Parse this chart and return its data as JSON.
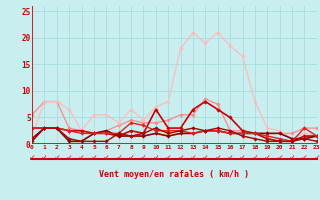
{
  "xlabel": "Vent moyen/en rafales ( km/h )",
  "xlim": [
    0,
    23
  ],
  "ylim": [
    0,
    26
  ],
  "yticks": [
    0,
    5,
    10,
    15,
    20,
    25
  ],
  "xticks": [
    0,
    1,
    2,
    3,
    4,
    5,
    6,
    7,
    8,
    9,
    10,
    11,
    12,
    13,
    14,
    15,
    16,
    17,
    18,
    19,
    20,
    21,
    22,
    23
  ],
  "bg_color": "#c8eef0",
  "grid_color": "#aaddde",
  "axis_color": "#cc0000",
  "tick_color": "#cc0000",
  "series": [
    {
      "y": [
        5.5,
        8.0,
        8.0,
        3.0,
        2.5,
        2.0,
        2.5,
        3.5,
        4.5,
        4.0,
        4.0,
        4.5,
        5.5,
        5.5,
        8.5,
        7.5,
        2.5,
        2.5,
        2.0,
        2.0,
        2.0,
        2.0,
        3.0,
        3.0
      ],
      "color": "#ff8888",
      "lw": 0.9
    },
    {
      "y": [
        1.5,
        8.0,
        8.0,
        6.5,
        2.5,
        5.5,
        5.5,
        4.0,
        6.5,
        4.5,
        7.0,
        8.0,
        18.0,
        21.0,
        19.0,
        21.0,
        18.5,
        16.5,
        8.0,
        3.0,
        2.5,
        1.0,
        2.0,
        1.5
      ],
      "color": "#ffbbbb",
      "lw": 0.9
    },
    {
      "y": [
        3.0,
        3.0,
        3.0,
        2.5,
        2.5,
        2.0,
        2.0,
        1.5,
        2.5,
        2.0,
        6.5,
        3.0,
        3.0,
        6.5,
        8.0,
        6.5,
        5.0,
        2.5,
        2.0,
        1.0,
        0.5,
        0.5,
        1.5,
        1.5
      ],
      "color": "#cc0000",
      "lw": 1.2
    },
    {
      "y": [
        1.0,
        3.0,
        3.0,
        0.5,
        0.5,
        2.0,
        2.5,
        1.5,
        1.5,
        1.5,
        2.0,
        1.5,
        2.0,
        2.0,
        2.5,
        2.5,
        2.0,
        2.0,
        2.0,
        2.0,
        2.0,
        1.0,
        1.0,
        1.5
      ],
      "color": "#880000",
      "lw": 1.2
    },
    {
      "y": [
        3.0,
        3.0,
        3.0,
        2.5,
        2.0,
        2.0,
        2.0,
        2.0,
        4.0,
        3.5,
        2.5,
        2.5,
        2.5,
        2.0,
        2.5,
        2.5,
        2.0,
        2.0,
        2.0,
        1.5,
        1.0,
        0.5,
        3.0,
        1.5
      ],
      "color": "#dd2222",
      "lw": 1.0
    },
    {
      "y": [
        0.5,
        3.0,
        3.0,
        1.0,
        0.5,
        0.5,
        0.5,
        2.0,
        1.5,
        2.0,
        3.0,
        2.0,
        2.5,
        3.0,
        2.5,
        3.0,
        2.5,
        1.5,
        1.0,
        0.5,
        0.5,
        0.5,
        1.0,
        0.5
      ],
      "color": "#aa0000",
      "lw": 1.0
    }
  ],
  "arrow_char": "↙",
  "arrow_fontsize": 5.5
}
